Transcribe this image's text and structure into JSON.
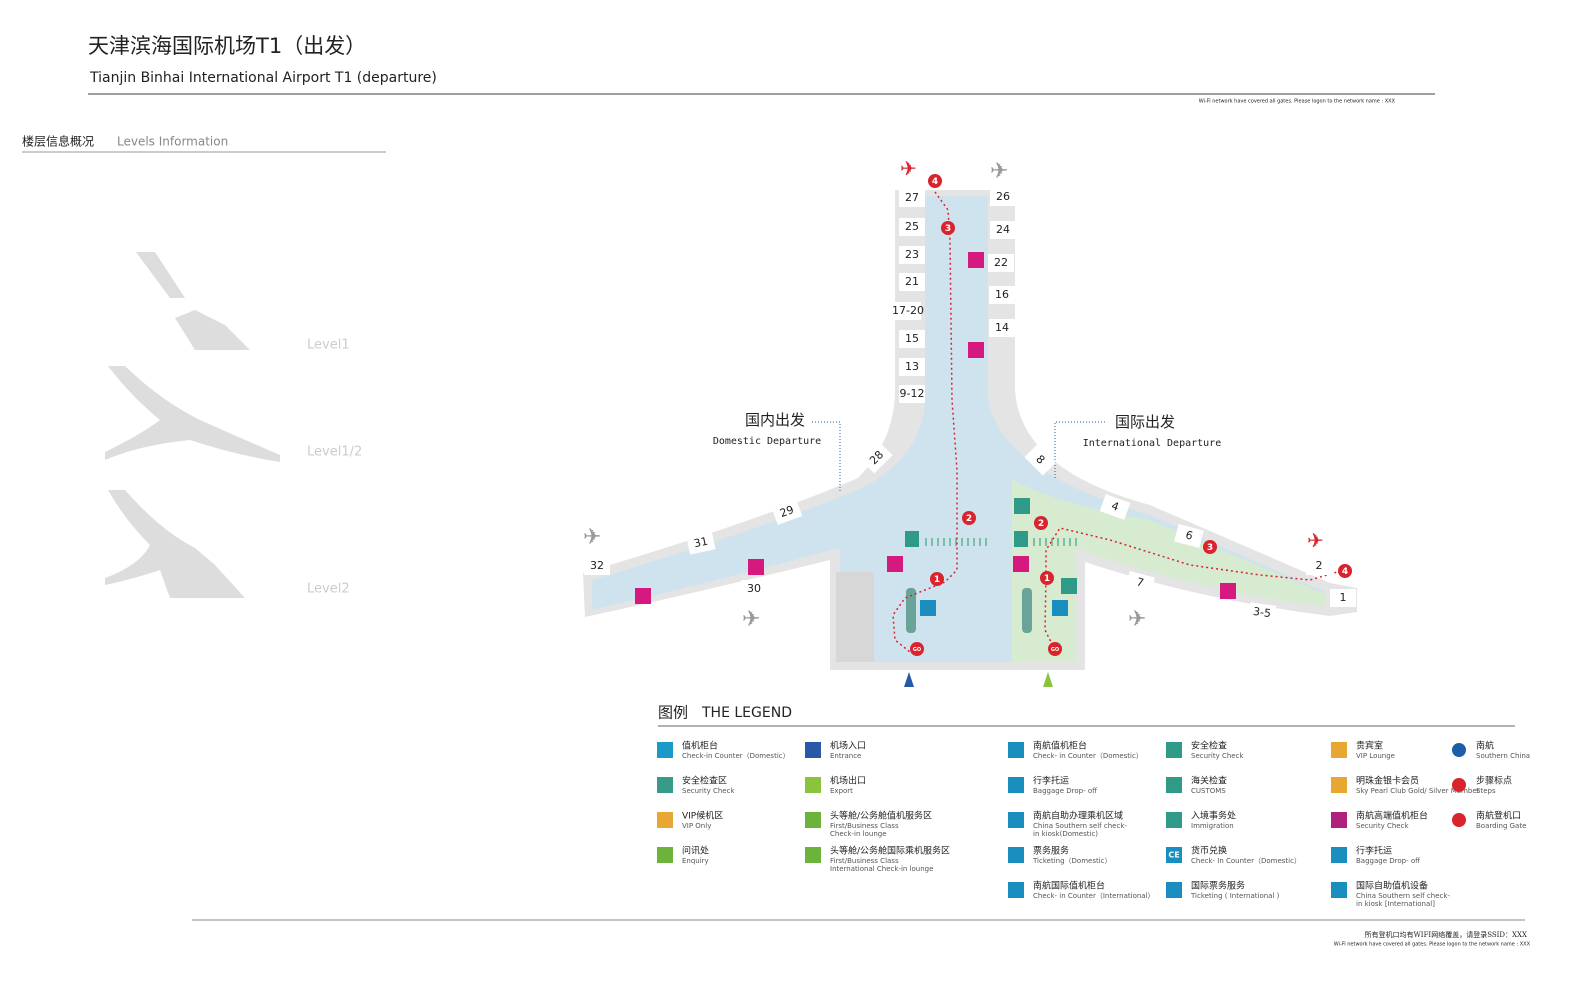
{
  "header": {
    "title_cn": "天津滨海国际机场T1（出发）",
    "title_en": "Tianjin Binhai International Airport T1 (departure)",
    "wifi_note": "Wi-Fi network have covered all gates. Please logon to the network name : XXX"
  },
  "levels": {
    "heading_cn": "楼层信息概况",
    "heading_en": "Levels Information",
    "items": [
      "Level1",
      "Level1/2",
      "Level2"
    ]
  },
  "map": {
    "domestic_cn": "国内出发",
    "domestic_en": "Domestic Departure",
    "international_cn": "国际出发",
    "international_en": "International Departure",
    "gates": [
      "27",
      "26",
      "25",
      "24",
      "23",
      "22",
      "21",
      "16",
      "17-20",
      "14",
      "15",
      "13",
      "9-12",
      "28",
      "8",
      "29",
      "4",
      "31",
      "6",
      "32",
      "30",
      "7",
      "2",
      "1",
      "3-5"
    ],
    "steps": [
      "1",
      "2",
      "3",
      "4",
      "GO"
    ]
  },
  "legend": {
    "title_cn": "图例",
    "title_en": "THE LEGEND",
    "icon_text": "CE",
    "items": [
      {
        "cn": "值机柜台",
        "en": "Check-in Counter（Domestic）"
      },
      {
        "cn": "安全检查区",
        "en": "Security Check"
      },
      {
        "cn": "VIP候机区",
        "en": "VIP Only"
      },
      {
        "cn": "问讯处",
        "en": "Enquiry"
      },
      {
        "cn": "机场入口",
        "en": "Entrance"
      },
      {
        "cn": "机场出口",
        "en": "Export"
      },
      {
        "cn": "头等舱/公务舱值机服务区",
        "en": "First/Business Class Check-in lounge"
      },
      {
        "cn": "头等舱/公务舱国际乘机服务区",
        "en": "First/Business Class International Check-in lounge"
      },
      {
        "cn": "南航值机柜台",
        "en": "Check- in Counter（Domestic）"
      },
      {
        "cn": "行李托运",
        "en": "Baggage Drop- off"
      },
      {
        "cn": "南航自助办理乘机区域",
        "en": "China Southern self check- in kiosk(Domestic)"
      },
      {
        "cn": "票务服务",
        "en": "Ticketing（Domestic）"
      },
      {
        "cn": "南航国际值机柜台",
        "en": "Check- in Counter（International）"
      },
      {
        "cn": "安全检查",
        "en": "Security Check"
      },
      {
        "cn": "海关检查",
        "en": "CUSTOMS"
      },
      {
        "cn": "入境事务处",
        "en": "Immigration"
      },
      {
        "cn": "货币兑换",
        "en": "Check- In Counter（Domestic）"
      },
      {
        "cn": "国际票务服务",
        "en": "Ticketing ( International )"
      },
      {
        "cn": "贵宾室",
        "en": "VIP Lounge"
      },
      {
        "cn": "明珠金银卡会员",
        "en": "Sky Pearl Club Gold/ Silver Member"
      },
      {
        "cn": "南航高端值机柜台",
        "en": "Security Check"
      },
      {
        "cn": "行李托运",
        "en": "Baggage Drop- off"
      },
      {
        "cn": "国际自助值机设备",
        "en": "China Southern self check- in kiosk [International]"
      },
      {
        "cn": "南航",
        "en": "Southern China"
      },
      {
        "cn": "步骤标点",
        "en": "Steps"
      },
      {
        "cn": "南航登机口",
        "en": "Boarding Gate"
      }
    ]
  },
  "footer": {
    "cn": "所有登机口均有WIFI网络覆盖，请登录SSID：XXX",
    "en": "Wi-Fi network have covered all gates. Please logon to the network name : XXX"
  }
}
